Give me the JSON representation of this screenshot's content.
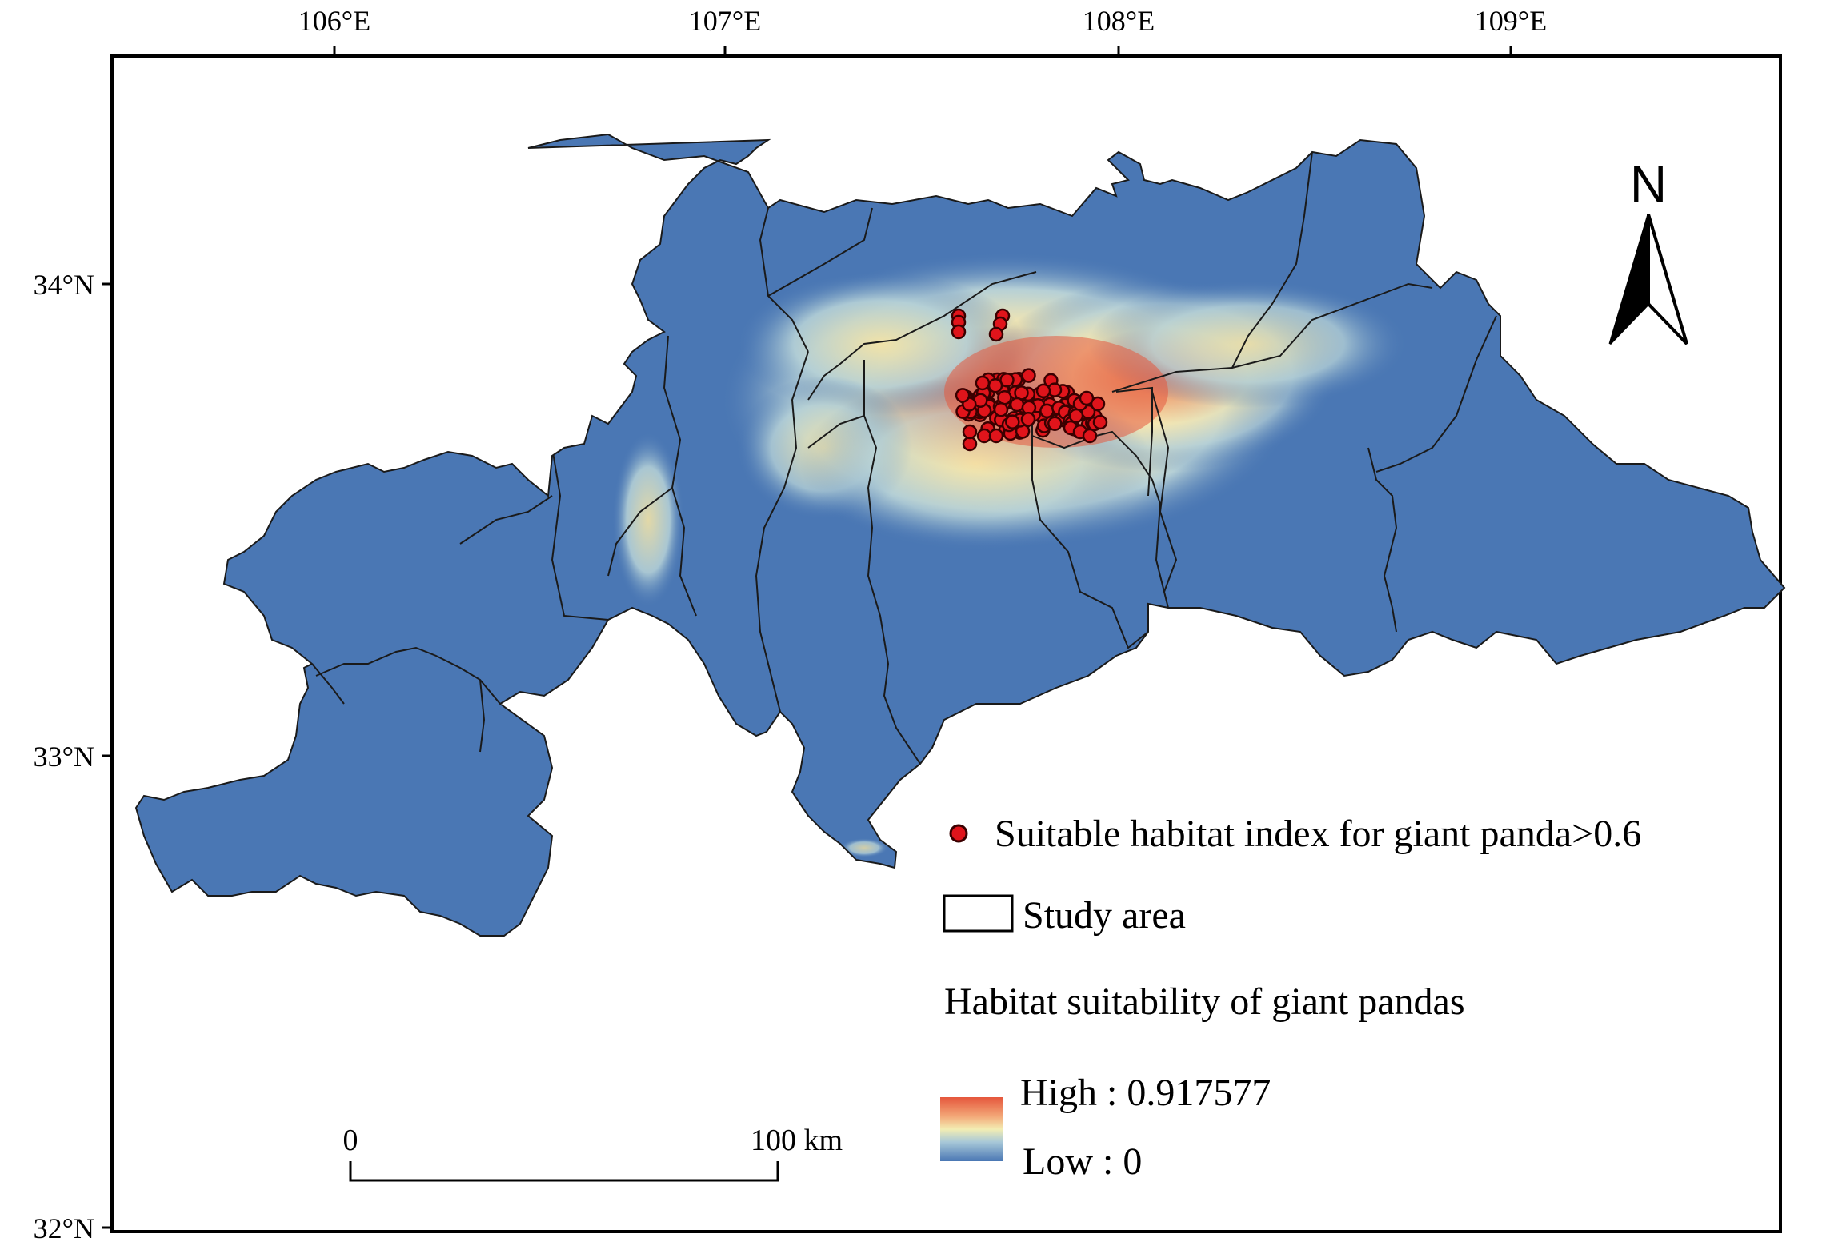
{
  "map": {
    "axes": {
      "x_ticks": [
        "106°E",
        "107°E",
        "108°E",
        "109°E"
      ],
      "y_ticks": [
        "34°N",
        "33°N",
        "32°N"
      ]
    },
    "north_arrow": {
      "label": "N",
      "icon": "north-arrow-icon"
    },
    "scale_bar": {
      "start_label": "0",
      "end_label": "100 km"
    },
    "legend": {
      "points_label": "Suitable habitat index for giant panda>0.6",
      "study_area_label": "Study area",
      "raster_title": "Habitat suitability of giant pandas",
      "high_label": "High : 0.917577",
      "low_label": "Low : 0"
    },
    "colors": {
      "low": "#4a77b4",
      "mid_low": "#a8c8d8",
      "mid": "#f3edb3",
      "high": "#e5563c",
      "points": "#e0141b",
      "point_outline": "#3a0000"
    }
  }
}
